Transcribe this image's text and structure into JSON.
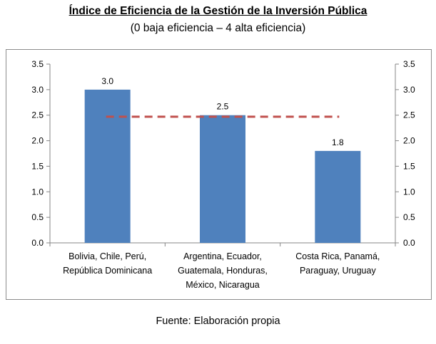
{
  "chart_data": {
    "type": "bar",
    "title": "Índice de Eficiencia de la Gestión de la Inversión Pública",
    "subtitle": "(0 baja eficiencia – 4 alta eficiencia)",
    "categories": [
      [
        "Bolivia, Chile, Perú,",
        "República Dominicana"
      ],
      [
        "Argentina, Ecuador,",
        "Guatemala, Honduras,",
        "México, Nicaragua"
      ],
      [
        "Costa Rica, Panamá,",
        "Paraguay, Uruguay"
      ]
    ],
    "values": [
      3.0,
      2.5,
      1.8
    ],
    "data_labels": [
      "3.0",
      "2.5",
      "1.8"
    ],
    "reference_line": {
      "value": 2.47,
      "style": "dashed",
      "color": "#c0504d"
    },
    "ylim": [
      0,
      3.5
    ],
    "yticks": [
      "0.0",
      "0.5",
      "1.0",
      "1.5",
      "2.0",
      "2.5",
      "3.0",
      "3.5"
    ],
    "secondary_yaxis": true,
    "grid": false,
    "bar_color": "#4f81bd",
    "source": "Fuente: Elaboración propia"
  }
}
